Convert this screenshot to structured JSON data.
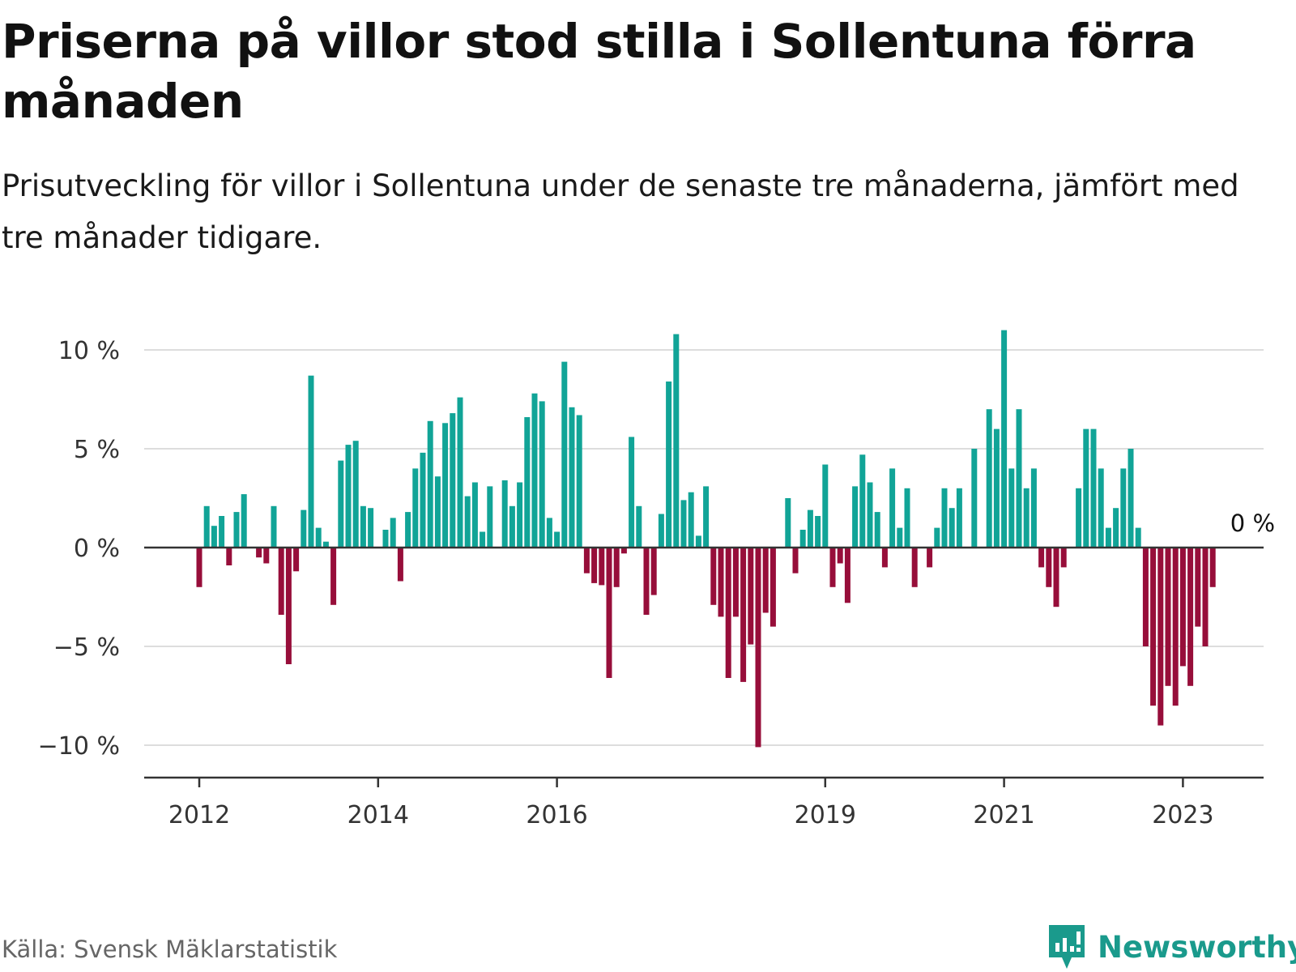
{
  "title": "Priserna på villor stod stilla i Sollentuna förra månaden",
  "subtitle": "Prisutveckling för villor i Sollentuna under de senaste tre månaderna, jämfört med tre månader tidigare.",
  "source": "Källa: Svensk Mäklarstatistik",
  "brand": "Newsworthy",
  "colors": {
    "positive": "#11a497",
    "negative": "#970e3a",
    "grid": "#dddddd",
    "axis": "#333333",
    "brand": "#1a9a8c"
  },
  "chart_data": {
    "type": "bar",
    "title": "Priserna på villor stod stilla i Sollentuna förra månaden",
    "xlabel": "",
    "ylabel": "",
    "unit": "%",
    "ylim": [
      -11.5,
      11.5
    ],
    "y_ticks": [
      {
        "value": 10,
        "label": "10 %"
      },
      {
        "value": 5,
        "label": "5 %"
      },
      {
        "value": 0,
        "label": "0 %"
      },
      {
        "value": -5,
        "label": "−5 %"
      },
      {
        "value": -10,
        "label": "−10 %"
      }
    ],
    "x_ticks": [
      {
        "index": 0,
        "label": "2012"
      },
      {
        "index": 24,
        "label": "2014"
      },
      {
        "index": 48,
        "label": "2016"
      },
      {
        "index": 84,
        "label": "2019"
      },
      {
        "index": 108,
        "label": "2021"
      },
      {
        "index": 132,
        "label": "2023"
      }
    ],
    "start": "2012-01",
    "values": [
      -2,
      2.1,
      1.1,
      1.6,
      -0.9,
      1.8,
      2.7,
      0,
      -0.5,
      -0.8,
      2.1,
      -3.4,
      -5.9,
      -1.2,
      1.9,
      8.7,
      1,
      0.3,
      -2.9,
      4.4,
      5.2,
      5.4,
      2.1,
      2,
      0,
      0.9,
      1.5,
      -1.7,
      1.8,
      4,
      4.8,
      6.4,
      3.6,
      6.3,
      6.8,
      7.6,
      2.6,
      3.3,
      0.8,
      3.1,
      0,
      3.4,
      2.1,
      3.3,
      6.6,
      7.8,
      7.4,
      1.5,
      0.8,
      9.4,
      7.1,
      6.7,
      -1.3,
      -1.8,
      -1.9,
      -6.6,
      -2,
      -0.3,
      5.6,
      2.1,
      -3.4,
      -2.4,
      1.7,
      8.4,
      10.8,
      2.4,
      2.8,
      0.6,
      3.1,
      -2.9,
      -3.5,
      -6.6,
      -3.5,
      -6.8,
      -4.9,
      -10.1,
      -3.3,
      -4,
      0,
      2.5,
      -1.3,
      0.9,
      1.9,
      1.6,
      4.2,
      -2,
      -0.8,
      -2.8,
      3.1,
      4.7,
      3.3,
      1.8,
      -1,
      4,
      1,
      3,
      -2,
      0,
      -1,
      1,
      3,
      2,
      3,
      0,
      5,
      0,
      7,
      6,
      11,
      4,
      7,
      3,
      4,
      -1,
      -2,
      -3,
      -1,
      0,
      3,
      6,
      6,
      4,
      1,
      2,
      4,
      5,
      1,
      -5,
      -8,
      -9,
      -7,
      -8,
      -6,
      -7,
      -4,
      -5,
      -2,
      0
    ],
    "last_value_label": "0 %"
  }
}
